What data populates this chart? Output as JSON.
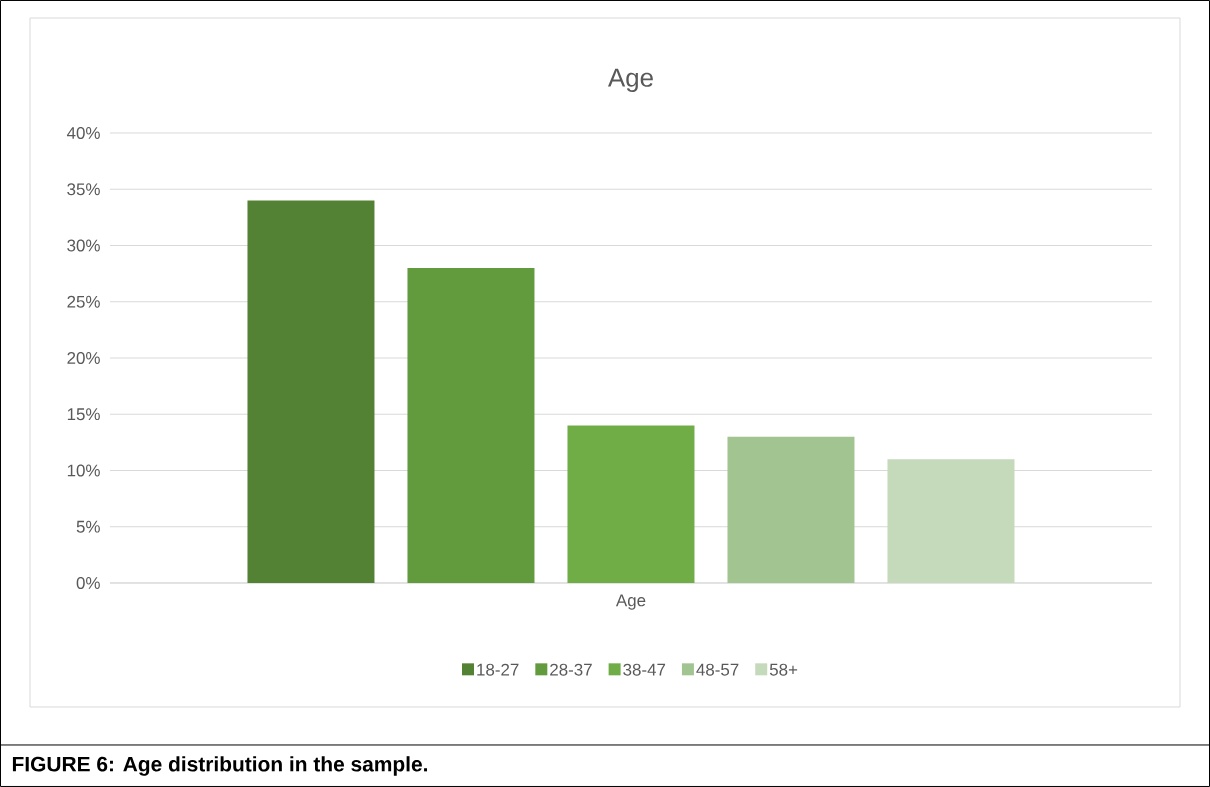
{
  "chart_data": {
    "type": "bar",
    "title": "Age",
    "categories": [
      "Age"
    ],
    "series": [
      {
        "name": "18-27",
        "color": "#548235",
        "values": [
          34
        ]
      },
      {
        "name": "28-37",
        "color": "#629b3e",
        "values": [
          28
        ]
      },
      {
        "name": "38-47",
        "color": "#70ad47",
        "values": [
          14
        ]
      },
      {
        "name": "48-57",
        "color": "#a2c490",
        "values": [
          13
        ]
      },
      {
        "name": "58+",
        "color": "#c5d9bb",
        "values": [
          11
        ]
      }
    ],
    "ylim": [
      0,
      40
    ],
    "yticks": [
      {
        "value": 0,
        "label": "0%"
      },
      {
        "value": 5,
        "label": "5%"
      },
      {
        "value": 10,
        "label": "10%"
      },
      {
        "value": 15,
        "label": "15%"
      },
      {
        "value": 20,
        "label": "20%"
      },
      {
        "value": 25,
        "label": "25%"
      },
      {
        "value": 30,
        "label": "30%"
      },
      {
        "value": 35,
        "label": "35%"
      },
      {
        "value": 40,
        "label": "40%"
      }
    ],
    "grid": "y",
    "legend": "bottom",
    "annotations": [
      "FIGURE 6: Age distribution in the sample."
    ]
  }
}
